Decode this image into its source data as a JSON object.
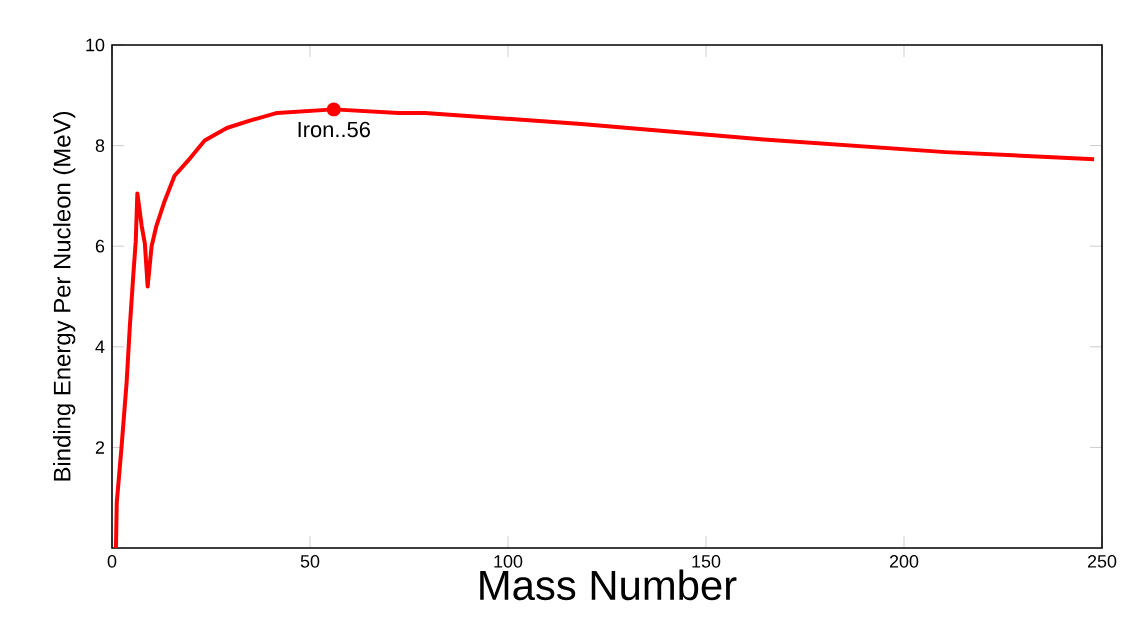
{
  "chart_data": {
    "type": "line",
    "xlabel": "Mass Number",
    "ylabel": "Binding Energy Per Nucleon (MeV)",
    "x": [
      1,
      1.2,
      2.4,
      3.7,
      4.5,
      5.4,
      6,
      6.4,
      7.5,
      8.3,
      9,
      10,
      11.2,
      13.3,
      15.8,
      19.2,
      23.4,
      29,
      35,
      41.7,
      56,
      72.4,
      79,
      118.5,
      164.6,
      210.5,
      248
    ],
    "series": [
      {
        "color": "#ff0000",
        "values": [
          0,
          0.9,
          2.0,
          3.3,
          4.4,
          5.45,
          6.1,
          7.05,
          6.4,
          6.05,
          5.2,
          6.0,
          6.4,
          6.9,
          7.4,
          7.7,
          8.1,
          8.35,
          8.5,
          8.65,
          8.72,
          8.65,
          8.65,
          8.43,
          8.12,
          7.87,
          7.73
        ]
      }
    ],
    "xlim": [
      0,
      250
    ],
    "ylim": [
      0,
      10
    ],
    "xticks": [
      0,
      50,
      100,
      150,
      200,
      250
    ],
    "yticks": [
      2,
      4,
      6,
      8,
      10
    ],
    "annotations": [
      {
        "text": "Iron..56",
        "x": 56,
        "y": 8.72
      }
    ],
    "grid": false,
    "marker": "none",
    "line_style": "solid"
  }
}
